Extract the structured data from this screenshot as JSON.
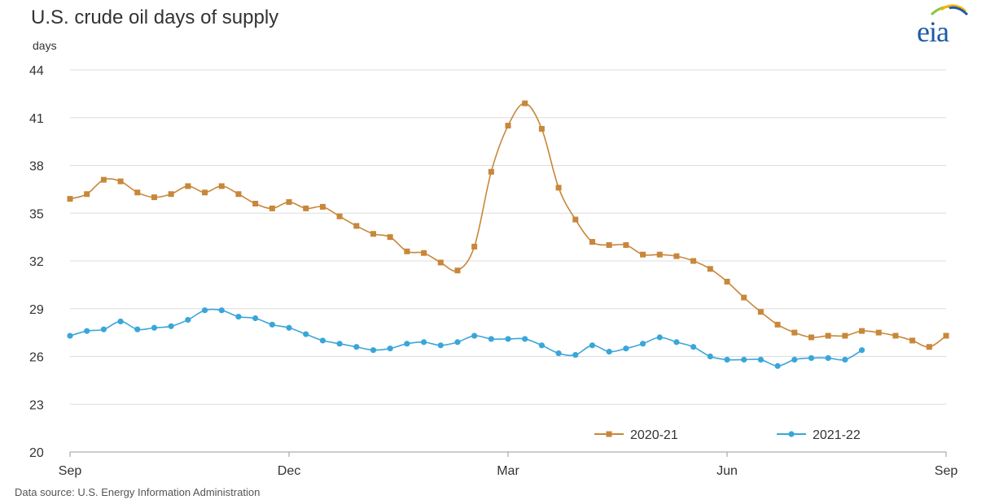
{
  "header": {
    "title": "U.S. crude oil days of supply",
    "units": "days"
  },
  "logo": {
    "text": "eia"
  },
  "source": "Data source: U.S. Energy Information Administration",
  "colors": {
    "series_2020_21": "#c8873a",
    "series_2021_22": "#3aa6d8",
    "grid": "#dddddd",
    "axis": "#999999"
  },
  "chart_data": {
    "type": "line",
    "title": "U.S. crude oil days of supply",
    "ylabel": "days",
    "xlabel": "",
    "ylim": [
      20,
      44
    ],
    "yticks": [
      20,
      23,
      26,
      29,
      32,
      35,
      38,
      41,
      44
    ],
    "x_range_weeks": [
      0,
      52
    ],
    "xticks": [
      {
        "label": "Sep",
        "week": 0
      },
      {
        "label": "Dec",
        "week": 13
      },
      {
        "label": "Mar",
        "week": 26
      },
      {
        "label": "Jun",
        "week": 39
      },
      {
        "label": "Sep",
        "week": 52
      }
    ],
    "grid": true,
    "legend_position": "bottom-right",
    "series": [
      {
        "name": "2020-21",
        "color": "#c8873a",
        "values": [
          35.9,
          36.2,
          37.1,
          37.0,
          36.3,
          36.0,
          36.2,
          36.7,
          36.3,
          36.7,
          36.2,
          35.6,
          35.3,
          35.7,
          35.3,
          35.4,
          34.8,
          34.2,
          33.7,
          33.5,
          32.6,
          32.5,
          31.9,
          31.4,
          32.9,
          37.6,
          40.5,
          41.9,
          40.3,
          36.6,
          34.6,
          33.2,
          33.0,
          33.0,
          32.4,
          32.4,
          32.3,
          32.0,
          31.5,
          30.7,
          29.7,
          28.8,
          28.0,
          27.5,
          27.2,
          27.3,
          27.3,
          27.6,
          27.5,
          27.3,
          27.0,
          26.6,
          27.3
        ]
      },
      {
        "name": "2021-22",
        "color": "#3aa6d8",
        "values": [
          27.3,
          27.6,
          27.7,
          28.2,
          27.7,
          27.8,
          27.9,
          28.3,
          28.9,
          28.9,
          28.5,
          28.4,
          28.0,
          27.8,
          27.4,
          27.0,
          26.8,
          26.6,
          26.4,
          26.5,
          26.8,
          26.9,
          26.7,
          26.9,
          27.3,
          27.1,
          27.1,
          27.1,
          26.7,
          26.2,
          26.1,
          26.7,
          26.3,
          26.5,
          26.8,
          27.2,
          26.9,
          26.6,
          26.0,
          25.8,
          25.8,
          25.8,
          25.4,
          25.8,
          25.9,
          25.9,
          25.8,
          26.4
        ]
      }
    ]
  }
}
